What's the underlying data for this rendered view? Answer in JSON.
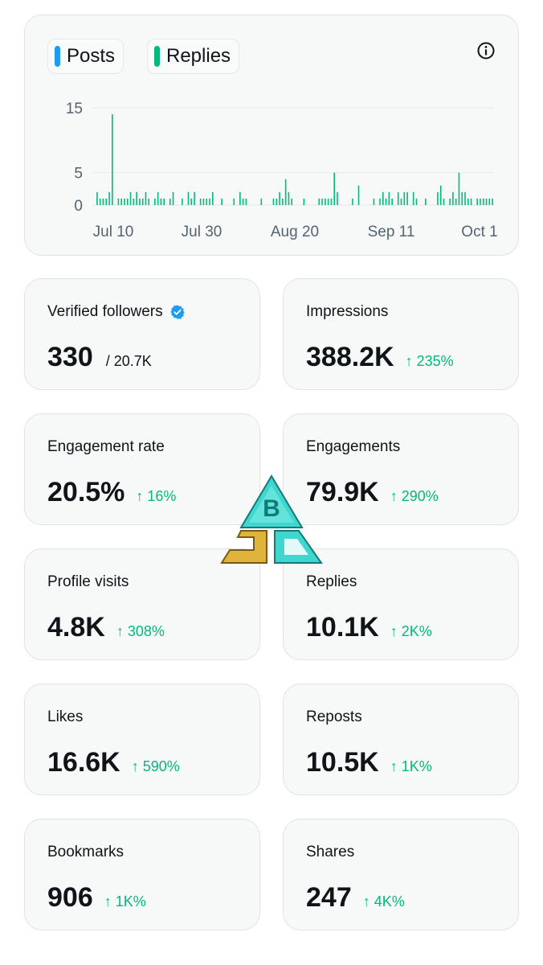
{
  "chart": {
    "legend": [
      {
        "label": "Posts",
        "color": "#1d9bf0"
      },
      {
        "label": "Replies",
        "color": "#00ba7c"
      }
    ],
    "info_icon": "info-circle-icon"
  },
  "chart_data": {
    "type": "bar",
    "series": [
      {
        "name": "Posts",
        "color": "#1d9bf0",
        "values": []
      },
      {
        "name": "Replies",
        "color": "#00ba7c",
        "values": [
          2,
          1,
          1,
          1,
          2,
          14,
          0,
          1,
          1,
          1,
          1,
          2,
          1,
          2,
          1,
          1,
          2,
          1,
          0,
          1,
          2,
          1,
          1,
          0,
          1,
          2,
          0,
          0,
          1,
          0,
          2,
          1,
          2,
          0,
          1,
          1,
          1,
          1,
          2,
          0,
          0,
          1,
          0,
          0,
          0,
          1,
          0,
          2,
          1,
          1,
          0,
          0,
          0,
          0,
          1,
          0,
          0,
          0,
          1,
          1,
          2,
          1,
          4,
          2,
          1,
          0,
          0,
          0,
          1,
          0,
          0,
          0,
          0,
          1,
          1,
          1,
          1,
          1,
          5,
          2,
          0,
          0,
          0,
          0,
          1,
          0,
          3,
          0,
          0,
          0,
          0,
          1,
          0,
          1,
          2,
          1,
          2,
          1,
          0,
          2,
          1,
          2,
          2,
          0,
          2,
          1,
          0,
          0,
          1,
          0,
          0,
          0,
          2,
          3,
          1,
          0,
          1,
          2,
          1,
          5,
          2,
          2,
          1,
          1,
          0,
          1,
          1,
          1,
          1,
          1,
          1
        ]
      }
    ],
    "x_labels": [
      "Jul 10",
      "Jul 30",
      "Aug 20",
      "Sep 11",
      "Oct 1"
    ],
    "y_ticks": [
      0,
      5,
      15
    ],
    "ylim": [
      0,
      15
    ],
    "grid": true,
    "legend_placement": "top-left"
  },
  "stats": [
    {
      "label": "Verified followers",
      "value": "330",
      "sub": "/ 20.7K",
      "verified": true
    },
    {
      "label": "Impressions",
      "value": "388.2K",
      "change": "↑ 235%"
    },
    {
      "label": "Engagement rate",
      "value": "20.5%",
      "change": "↑ 16%"
    },
    {
      "label": "Engagements",
      "value": "79.9K",
      "change": "↑ 290%"
    },
    {
      "label": "Profile visits",
      "value": "4.8K",
      "change": "↑ 308%"
    },
    {
      "label": "Replies",
      "value": "10.1K",
      "change": "↑ 2K%"
    },
    {
      "label": "Likes",
      "value": "16.6K",
      "change": "↑ 590%"
    },
    {
      "label": "Reposts",
      "value": "10.5K",
      "change": "↑ 1K%"
    },
    {
      "label": "Bookmarks",
      "value": "906",
      "change": "↑ 1K%"
    },
    {
      "label": "Shares",
      "value": "247",
      "change": "↑ 4K%"
    }
  ],
  "watermark": {
    "icon": "bjc-logo-icon",
    "colors": [
      "#3fd6cf",
      "#e0b33a"
    ]
  }
}
